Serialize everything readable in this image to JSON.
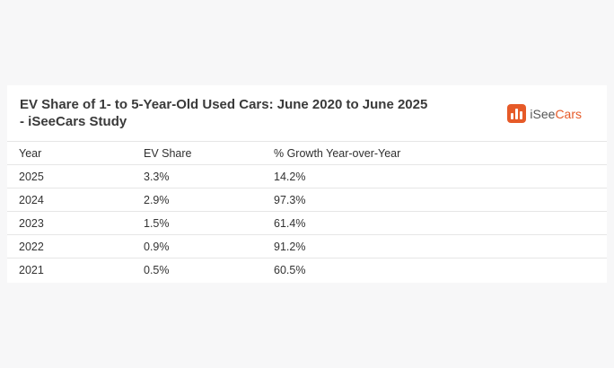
{
  "header": {
    "title": "EV Share of 1- to 5-Year-Old Used Cars: June 2020 to June 2025 - iSeeCars Study",
    "logo": {
      "text_main": "iSee",
      "text_accent": "Cars",
      "accent_color": "#e65a28",
      "icon": "bar-chart-logo-icon"
    }
  },
  "table": {
    "columns": [
      "Year",
      "EV Share",
      "% Growth Year-over-Year"
    ],
    "rows": [
      [
        "2025",
        "3.3%",
        "14.2%"
      ],
      [
        "2024",
        "2.9%",
        "97.3%"
      ],
      [
        "2023",
        "1.5%",
        "61.4%"
      ],
      [
        "2022",
        "0.9%",
        "91.2%"
      ],
      [
        "2021",
        "0.5%",
        "60.5%"
      ]
    ]
  }
}
